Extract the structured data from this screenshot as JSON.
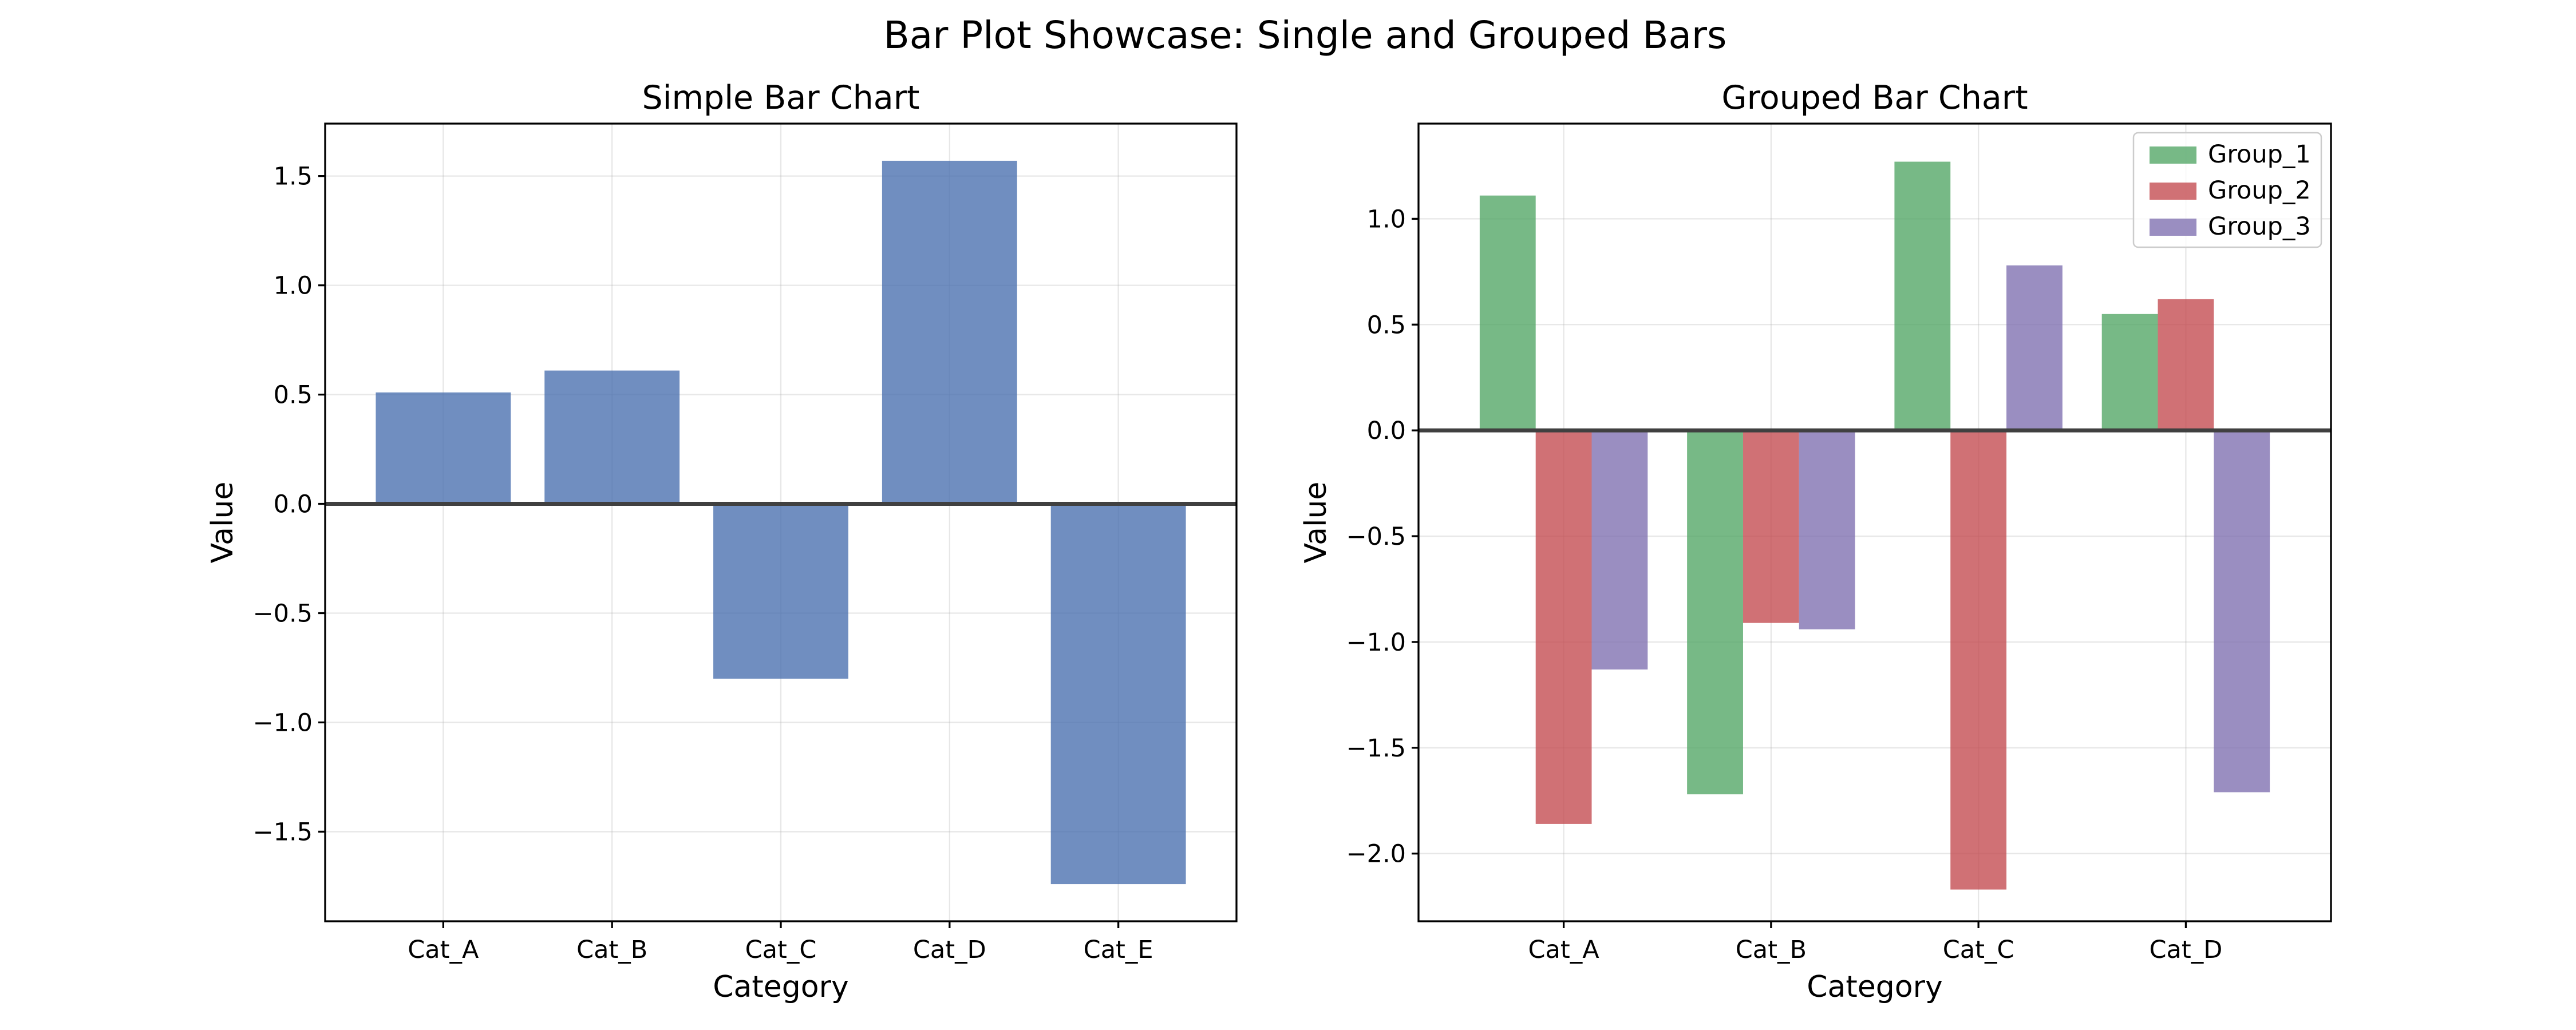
{
  "figure": {
    "suptitle": "Bar Plot Showcase: Single and Grouped Bars"
  },
  "chart_data": [
    {
      "type": "bar",
      "title": "Simple Bar Chart",
      "xlabel": "Category",
      "ylabel": "Value",
      "categories": [
        "Cat_A",
        "Cat_B",
        "Cat_C",
        "Cat_D",
        "Cat_E"
      ],
      "values": [
        0.51,
        0.61,
        -0.8,
        1.57,
        -1.74
      ],
      "ylim": [
        -1.91,
        1.74
      ],
      "yticks": [
        -1.5,
        -1.0,
        -0.5,
        0.0,
        0.5,
        1.0,
        1.5
      ],
      "ytick_labels": [
        "−1.5",
        "−1.0",
        "−0.5",
        "0.0",
        "0.5",
        "1.0",
        "1.5"
      ],
      "color": "#4c72b0",
      "grid": true,
      "zero_line": true
    },
    {
      "type": "bar",
      "title": "Grouped Bar Chart",
      "xlabel": "Category",
      "ylabel": "Value",
      "categories": [
        "Cat_A",
        "Cat_B",
        "Cat_C",
        "Cat_D"
      ],
      "series": [
        {
          "name": "Group_1",
          "color": "#55a868",
          "values": [
            1.11,
            -1.72,
            1.27,
            0.55
          ]
        },
        {
          "name": "Group_2",
          "color": "#c44e52",
          "values": [
            -1.86,
            -0.91,
            -2.17,
            0.62
          ]
        },
        {
          "name": "Group_3",
          "color": "#8172b2",
          "values": [
            -1.13,
            -0.94,
            0.78,
            -1.71
          ]
        }
      ],
      "ylim": [
        -2.32,
        1.45
      ],
      "yticks": [
        -2.0,
        -1.5,
        -1.0,
        -0.5,
        0.0,
        0.5,
        1.0
      ],
      "ytick_labels": [
        "−2.0",
        "−1.5",
        "−1.0",
        "−0.5",
        "0.0",
        "0.5",
        "1.0"
      ],
      "legend": "top-right",
      "grid": true,
      "zero_line": true
    }
  ]
}
